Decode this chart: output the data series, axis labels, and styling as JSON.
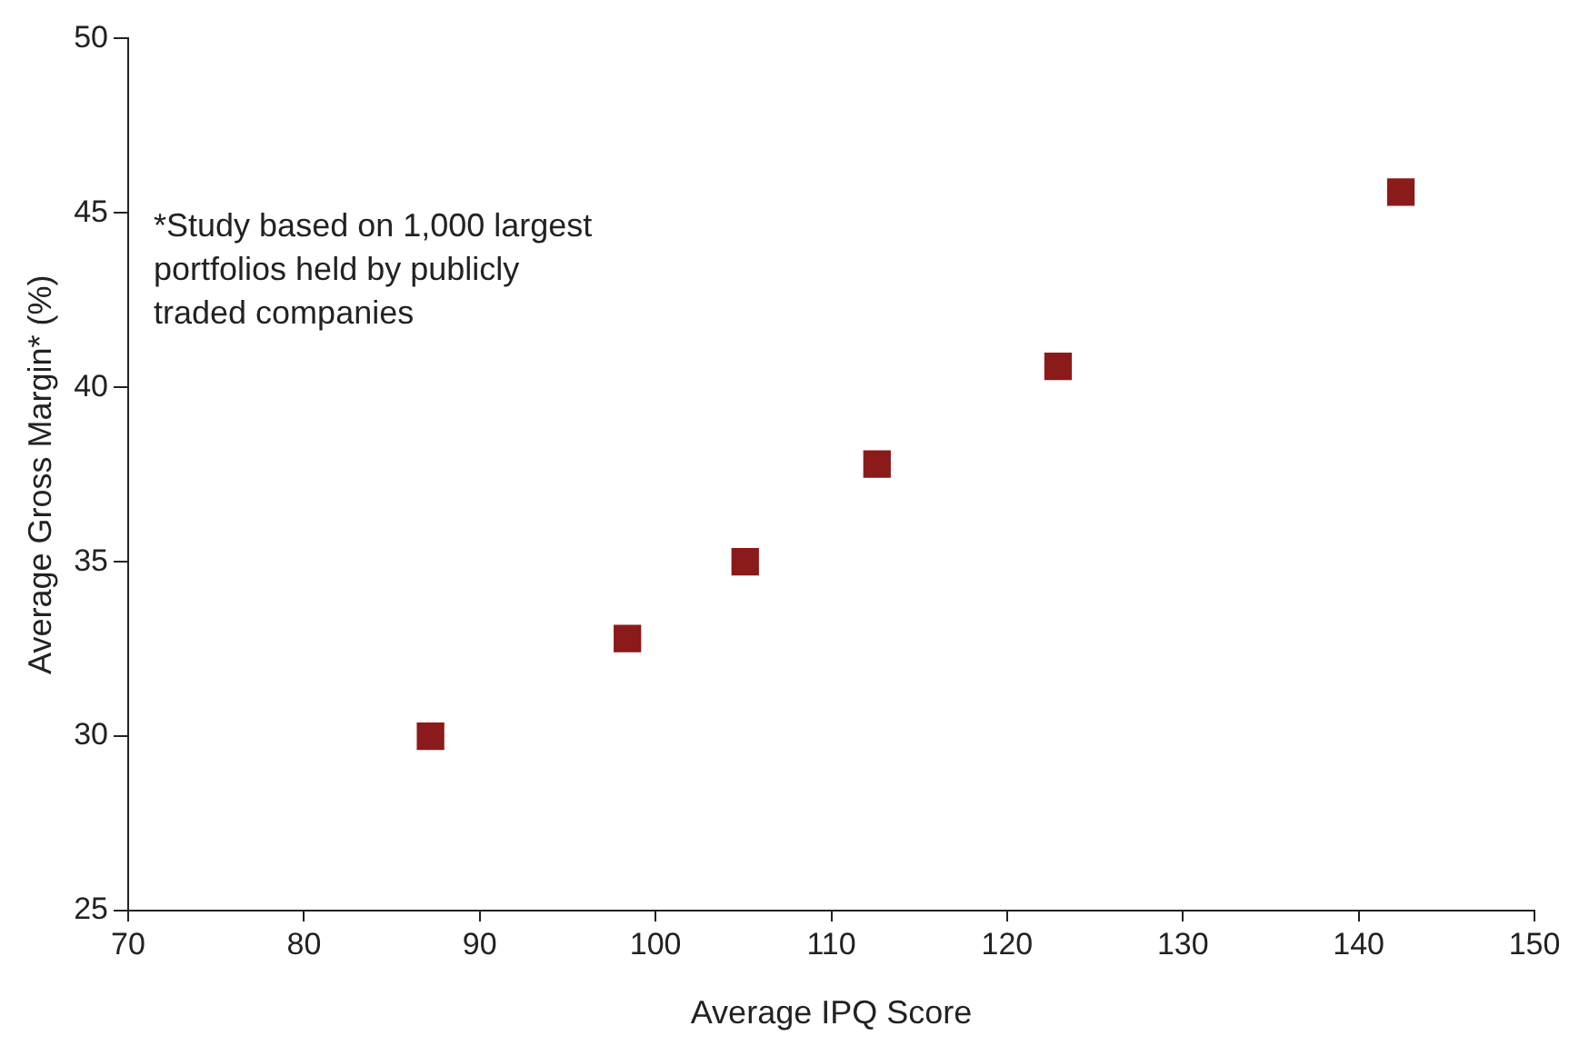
{
  "chart_data": {
    "type": "scatter",
    "xlabel": "Average IPQ Score",
    "ylabel": "Average Gross Margin* (%)",
    "annotations": [
      "*Study based on 1,000 largest\nportfolios held by publicly\ntraded companies"
    ],
    "x": [
      87.2,
      98.4,
      105.1,
      112.6,
      122.9,
      142.4
    ],
    "series": [
      {
        "color": "#8b1a1a",
        "values": [
          30.0,
          32.8,
          35.0,
          37.8,
          40.6,
          45.6
        ]
      }
    ],
    "xlim": [
      70,
      150
    ],
    "xticks": [
      70,
      80,
      90,
      100,
      110,
      120,
      130,
      140,
      150
    ],
    "ylim": [
      25,
      50
    ],
    "yticks": [
      25,
      30,
      35,
      40,
      45,
      50
    ],
    "grid": false,
    "legend": false,
    "marker": "square"
  }
}
